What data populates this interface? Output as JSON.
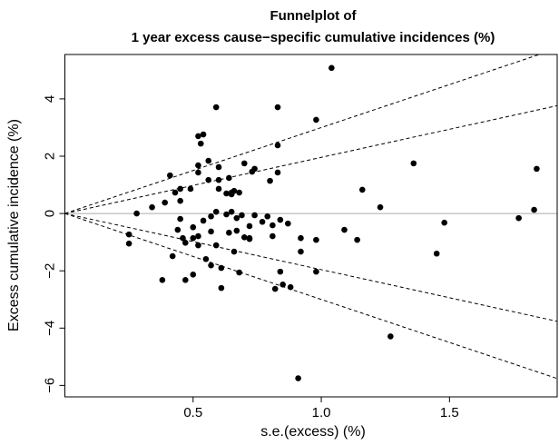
{
  "chart_data": {
    "type": "scatter",
    "title": "Funnelplot of",
    "subtitle": "1 year excess cause−specific cumulative incidences (%)",
    "x_label": "s.e.(excess) (%)",
    "y_label": "Excess cumulative incidence (%)",
    "xlim": [
      0,
      1.92
    ],
    "ylim": [
      -6.4,
      5.55
    ],
    "xticks": [
      0.5,
      {
        "value": 1,
        "label": "1.0"
      },
      1.5
    ],
    "yticks": [
      {
        "value": -6,
        "label": "−6"
      },
      {
        "value": -4,
        "label": "−4"
      },
      {
        "value": -2,
        "label": "−2"
      },
      0,
      2,
      4
    ],
    "reference_line": 0,
    "funnel_multipliers": [
      -3,
      -1.96,
      1.96,
      3
    ],
    "color": "#000000",
    "series": [
      {
        "x": [
          0.28,
          0.25,
          0.25,
          0.34,
          0.38,
          0.39,
          0.41,
          0.43,
          0.44,
          0.42,
          0.45,
          0.45,
          0.46,
          0.45,
          0.47,
          0.47,
          0.49,
          0.5,
          0.5,
          0.5,
          0.52,
          0.52,
          0.52,
          0.52,
          0.53,
          0.52,
          0.54,
          0.54,
          0.55,
          0.56,
          0.56,
          0.57,
          0.57,
          0.57,
          0.59,
          0.59,
          0.59,
          0.6,
          0.6,
          0.6,
          0.61,
          0.61,
          0.63,
          0.63,
          0.64,
          0.64,
          0.65,
          0.65,
          0.65,
          0.66,
          0.66,
          0.67,
          0.67,
          0.68,
          0.68,
          0.69,
          0.7,
          0.7,
          0.72,
          0.72,
          0.72,
          0.73,
          0.74,
          0.74,
          0.77,
          0.79,
          0.8,
          0.81,
          0.81,
          0.82,
          0.83,
          0.83,
          0.83,
          0.84,
          0.84,
          0.85,
          0.87,
          0.88,
          0.91,
          0.92,
          0.92,
          0.98,
          0.98,
          0.98,
          1.09,
          1.14,
          1.04,
          1.16,
          1.23,
          1.27,
          1.36,
          1.45,
          1.48,
          1.77,
          1.83,
          1.84
        ],
        "values": [
          0,
          -0.73,
          -1.05,
          0.22,
          -2.32,
          0.38,
          1.33,
          0.73,
          -0.57,
          -1.49,
          0.44,
          -0.19,
          -0.86,
          0.86,
          -2.32,
          -1.02,
          0.86,
          -2.13,
          -0.48,
          -0.86,
          -1.11,
          1.68,
          1.43,
          2.7,
          2.44,
          -0.79,
          -0.25,
          2.76,
          -1.59,
          1.17,
          1.84,
          -0.63,
          -0.1,
          -1.81,
          3.71,
          0.06,
          -1.11,
          0.86,
          1.17,
          1.62,
          -1.9,
          -2.6,
          -0.03,
          0.7,
          -0.67,
          1.24,
          0.06,
          0.67,
          0.73,
          0.79,
          -1.33,
          -0.16,
          -0.6,
          0.73,
          -2.06,
          -0.06,
          -0.83,
          1.75,
          -0.44,
          -0.86,
          -0.89,
          1.46,
          1.56,
          -0.06,
          -0.29,
          -0.1,
          1.14,
          -0.79,
          -0.41,
          -2.63,
          1.43,
          2.38,
          3.71,
          -0.22,
          -2.03,
          -2.48,
          -0.35,
          -2.57,
          -5.75,
          -0.86,
          -1.33,
          3.27,
          -0.92,
          -2.03,
          -0.57,
          -0.92,
          5.08,
          0.83,
          0.22,
          -4.29,
          1.75,
          -1.4,
          -0.32,
          -0.16,
          0.13,
          1.56
        ]
      }
    ]
  }
}
